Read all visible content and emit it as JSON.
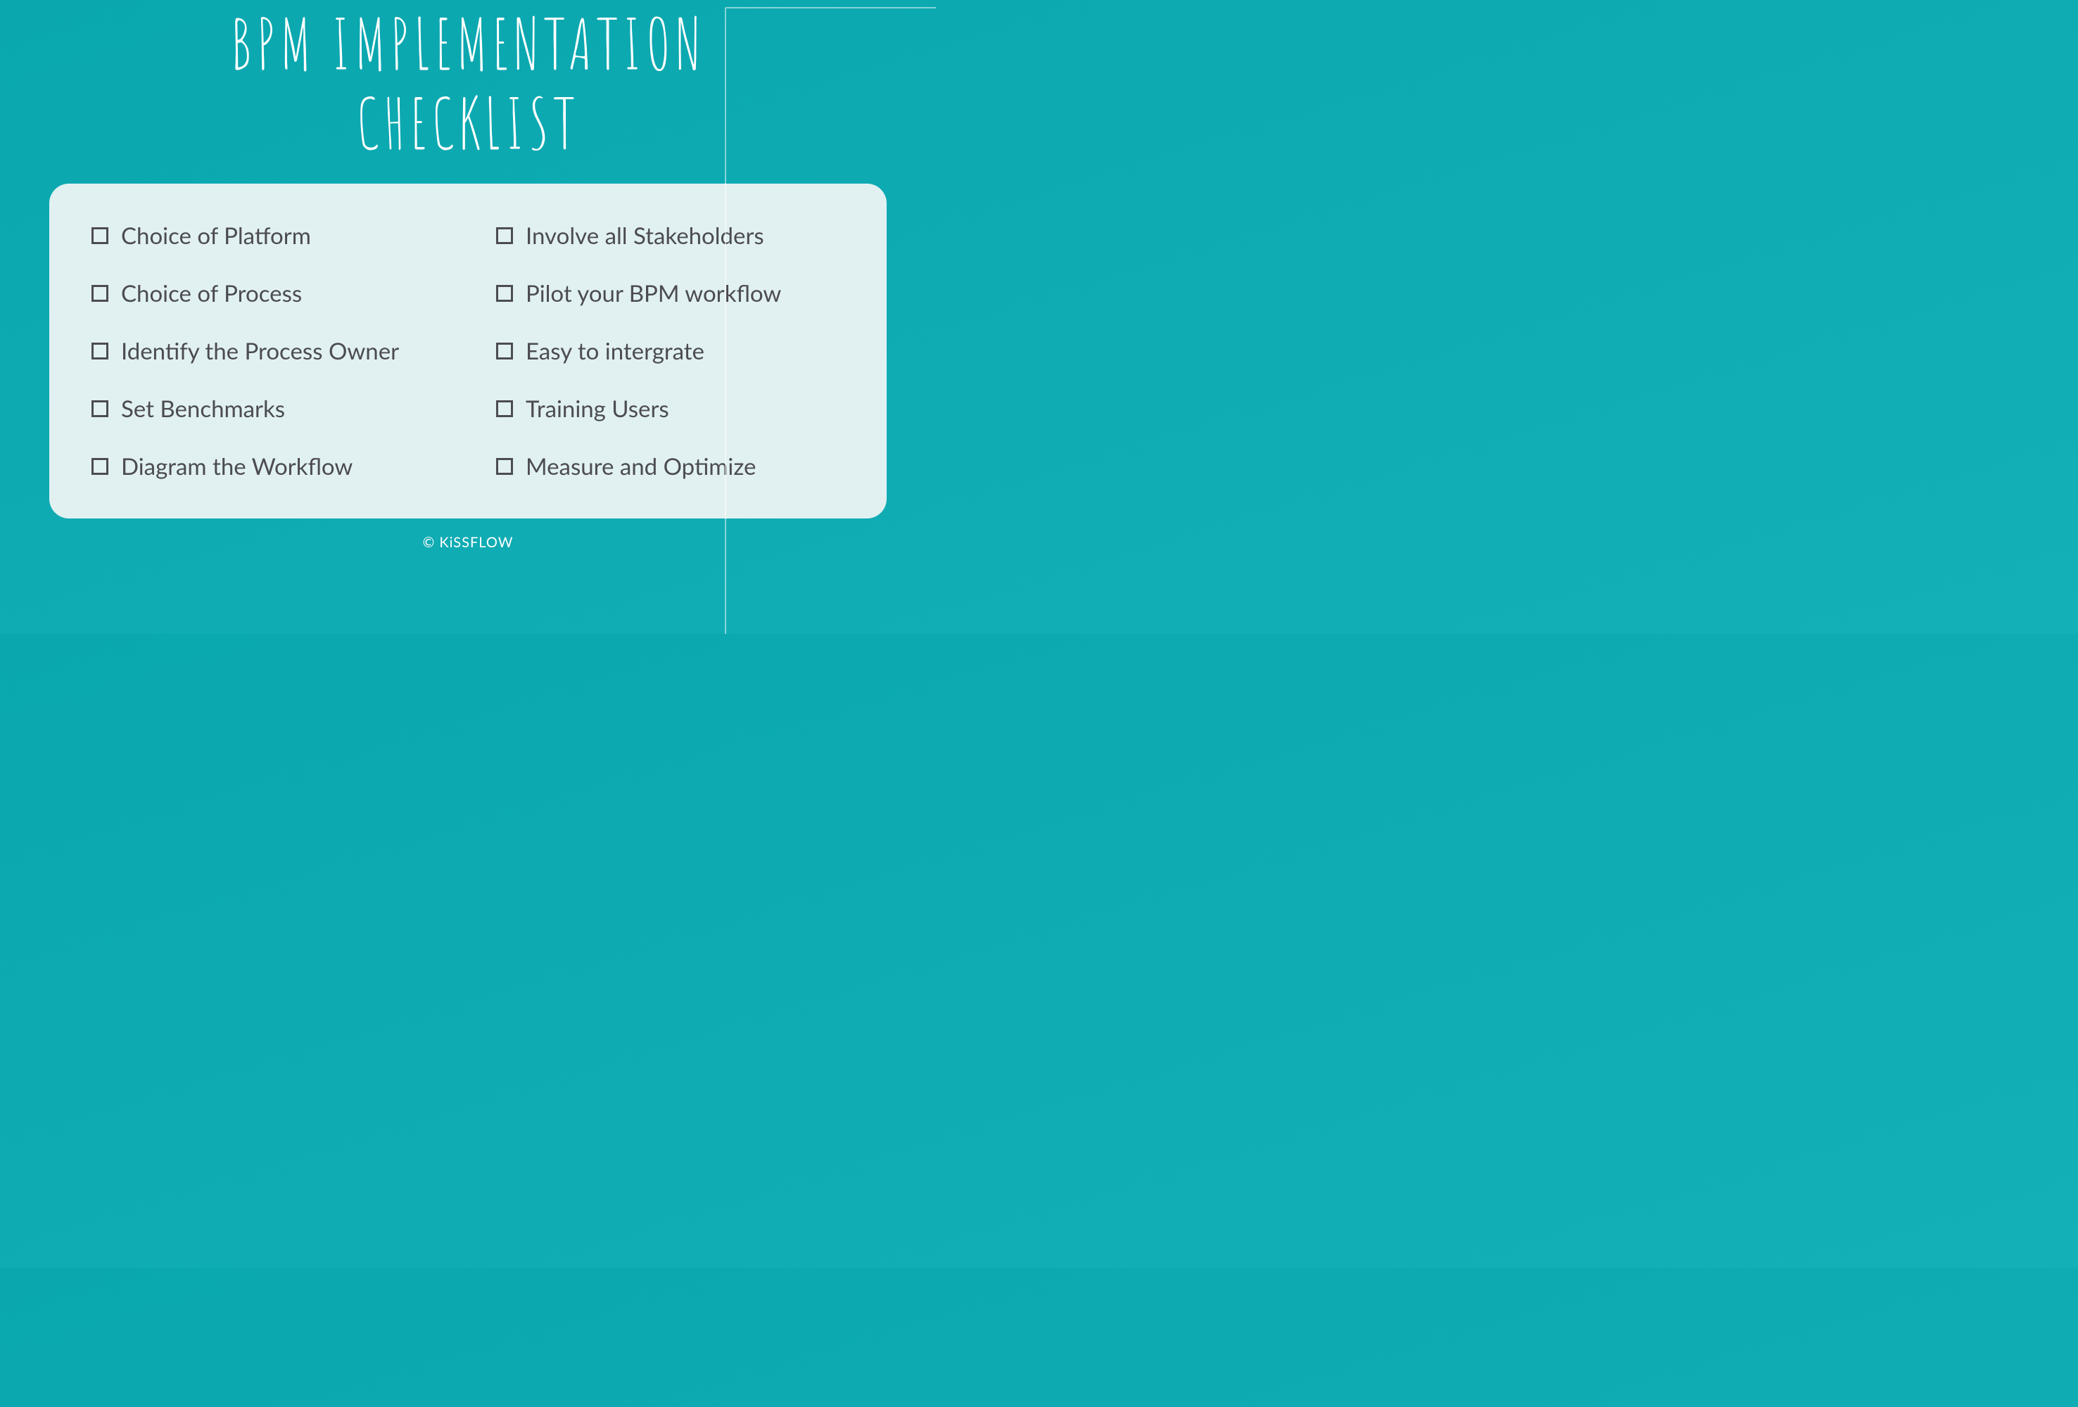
{
  "title_line1": "BPM IMPLEMENTATION",
  "title_line2": "CHECKLIST",
  "colors": {
    "background_start": "#0aa7af",
    "background_end": "#14b0b8",
    "card_bg": "#e1f1f1",
    "title_color": "#ffffff",
    "item_color": "#4c4c52",
    "footer_color": "#ffffff"
  },
  "checklist": {
    "left": [
      "Choice of  Platform",
      "Choice of Process",
      "Identify the Process Owner",
      "Set Benchmarks",
      "Diagram the Workflow"
    ],
    "right": [
      "Involve all Stakeholders",
      "Pilot your BPM workflow",
      "Easy to intergrate",
      "Training Users",
      "Measure and Optimize"
    ]
  },
  "footer": "© KiSSFLOW"
}
